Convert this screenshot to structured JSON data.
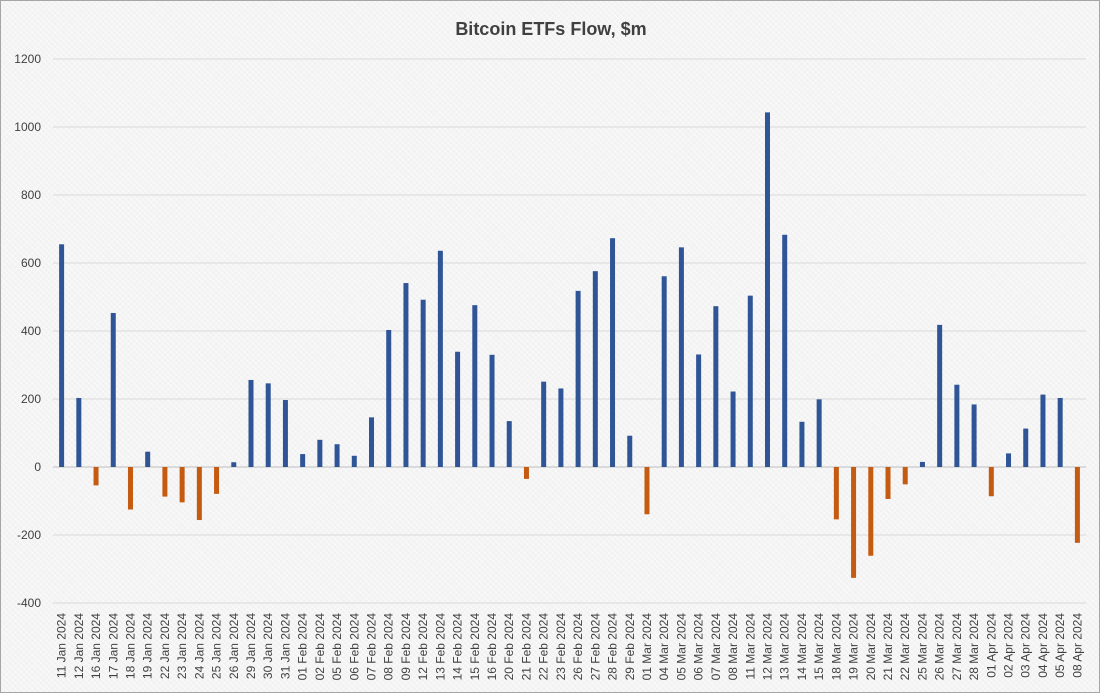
{
  "chart_data": {
    "type": "bar",
    "title": "Bitcoin ETFs Flow, $m",
    "xlabel": "",
    "ylabel": "",
    "ylim": [
      -400,
      1200
    ],
    "yticks": [
      -400,
      -200,
      0,
      200,
      400,
      600,
      800,
      1000,
      1200
    ],
    "grid": true,
    "legend": "none",
    "colors": {
      "positive": "#2f5597",
      "negative": "#c55a11",
      "gridline": "#d9d9d9",
      "axis": "#bfbfbf"
    },
    "categories": [
      "11 Jan 2024",
      "12 Jan 2024",
      "16 Jan 2024",
      "17 Jan 2024",
      "18 Jan 2024",
      "19 Jan 2024",
      "22 Jan 2024",
      "23 Jan 2024",
      "24 Jan 2024",
      "25 Jan 2024",
      "26 Jan 2024",
      "29 Jan 2024",
      "30 Jan 2024",
      "31 Jan 2024",
      "01 Feb 2024",
      "02 Feb 2024",
      "05 Feb 2024",
      "06 Feb 2024",
      "07 Feb 2024",
      "08 Feb 2024",
      "09 Feb 2024",
      "12 Feb 2024",
      "13 Feb 2024",
      "14 Feb 2024",
      "15 Feb 2024",
      "16 Feb 2024",
      "20 Feb 2024",
      "21 Feb 2024",
      "22 Feb 2024",
      "23 Feb 2024",
      "26 Feb 2024",
      "27 Feb 2024",
      "28 Feb 2024",
      "29 Feb 2024",
      "01 Mar 2024",
      "04 Mar 2024",
      "05 Mar 2024",
      "06 Mar 2024",
      "07 Mar 2024",
      "08 Mar 2024",
      "11 Mar 2024",
      "12 Mar 2024",
      "13 Mar 2024",
      "14 Mar 2024",
      "15 Mar 2024",
      "18 Mar 2024",
      "19 Mar 2024",
      "20 Mar 2024",
      "21 Mar 2024",
      "22 Mar 2024",
      "25 Mar 2024",
      "26 Mar 2024",
      "27 Mar 2024",
      "28 Mar 2024",
      "01 Apr 2024",
      "02 Apr 2024",
      "03 Apr 2024",
      "04 Apr 2024",
      "05 Apr 2024",
      "08 Apr 2024"
    ],
    "values": [
      655,
      203,
      -54,
      453,
      -125,
      45,
      -87,
      -104,
      -156,
      -79,
      14,
      256,
      246,
      197,
      38,
      80,
      67,
      33,
      146,
      403,
      541,
      492,
      636,
      339,
      476,
      330,
      135,
      -35,
      251,
      231,
      518,
      576,
      673,
      92,
      -139,
      561,
      646,
      331,
      473,
      222,
      504,
      1043,
      683,
      133,
      199,
      -154,
      -326,
      -261,
      -94,
      -51,
      15,
      418,
      242,
      184,
      -86,
      40,
      113,
      213,
      203,
      -223
    ]
  }
}
